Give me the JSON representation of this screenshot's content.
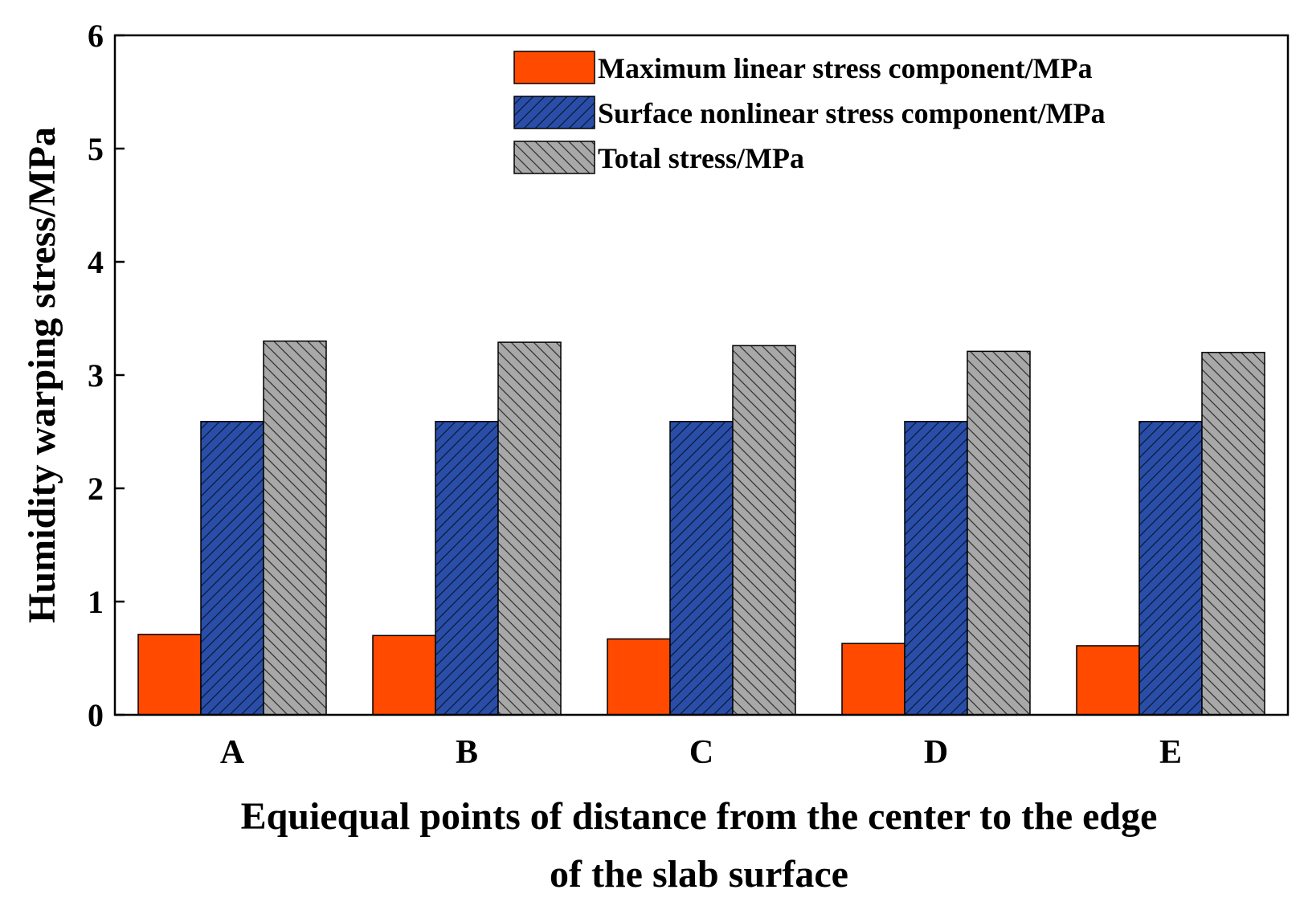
{
  "chart_data": {
    "type": "bar",
    "categories": [
      "A",
      "B",
      "C",
      "D",
      "E"
    ],
    "series": [
      {
        "name": "Maximum linear stress component/MPa",
        "values": [
          0.71,
          0.7,
          0.67,
          0.63,
          0.61
        ],
        "color": "#ff4a00",
        "pattern": "solid"
      },
      {
        "name": "Surface nonlinear stress component/MPa",
        "values": [
          2.59,
          2.59,
          2.59,
          2.59,
          2.59
        ],
        "color": "#2a4ea8",
        "pattern": "forward-hatch"
      },
      {
        "name": "Total stress/MPa",
        "values": [
          3.3,
          3.29,
          3.26,
          3.21,
          3.2
        ],
        "color": "#a8a8a8",
        "pattern": "back-hatch"
      }
    ],
    "title": "",
    "xlabel_lines": [
      "Equiequal points of distance from the center to the edge",
      "of the slab surface"
    ],
    "ylabel": "Humidity warping stress/MPa",
    "ylim": [
      0,
      6
    ],
    "yticks": [
      "0",
      "1",
      "2",
      "3",
      "4",
      "5",
      "6"
    ],
    "grid": false,
    "legend_position": "top-right"
  }
}
